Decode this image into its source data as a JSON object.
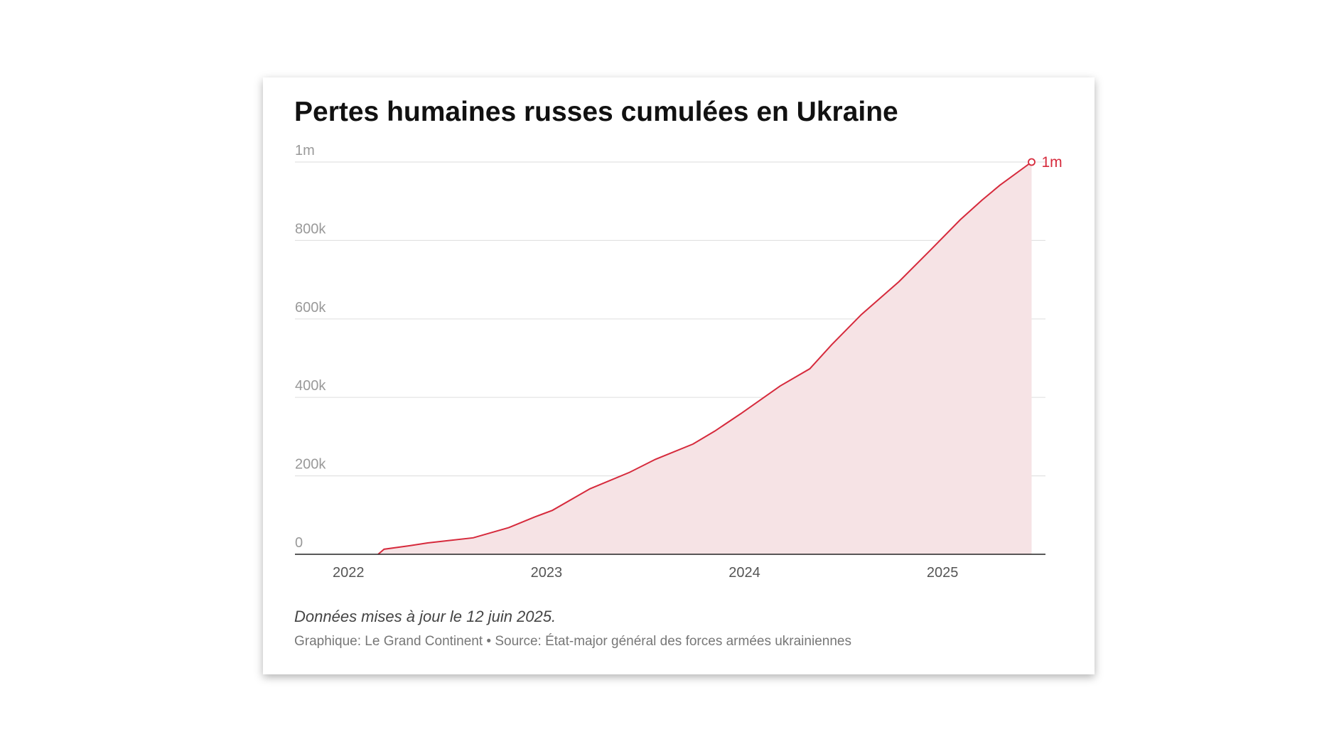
{
  "chart_data": {
    "type": "area",
    "title": "Pertes humaines russes cumulées en Ukraine",
    "note": "Données mises à jour le 12 juin 2025.",
    "source": "Graphique: Le Grand Continent • Source: État-major général des forces armées ukrainiennes",
    "color": "#d62a3c",
    "fill_color": "#f6e3e5",
    "grid": true,
    "x": [
      2022.15,
      2022.18,
      2022.31,
      2022.4,
      2022.63,
      2022.81,
      2022.94,
      2023.03,
      2023.22,
      2023.42,
      2023.55,
      2023.74,
      2023.85,
      2023.98,
      2024.18,
      2024.33,
      2024.44,
      2024.59,
      2024.78,
      2024.94,
      2025.09,
      2025.2,
      2025.29,
      2025.45
    ],
    "values": [
      0,
      13000,
      22000,
      29000,
      42000,
      68000,
      95000,
      112000,
      167000,
      209000,
      242000,
      281000,
      314000,
      358000,
      429000,
      473000,
      534000,
      611000,
      695000,
      776000,
      853000,
      903000,
      941000,
      1000000
    ],
    "value_labels": [
      null,
      null,
      null,
      null,
      null,
      null,
      null,
      null,
      null,
      null,
      null,
      null,
      null,
      null,
      null,
      null,
      null,
      null,
      null,
      null,
      null,
      null,
      null,
      "1m"
    ],
    "xlim": [
      2021.73,
      2025.52
    ],
    "xticks": [
      2022,
      2023,
      2024,
      2025
    ],
    "ylim": [
      0,
      1000000
    ],
    "yticks": [
      0,
      {
        "value": 200000,
        "label": "200k"
      },
      {
        "value": 400000,
        "label": "400k"
      },
      {
        "value": 600000,
        "label": "600k"
      },
      {
        "value": 800000,
        "label": "800k"
      },
      {
        "value": 1000000,
        "label": "1m"
      }
    ]
  }
}
